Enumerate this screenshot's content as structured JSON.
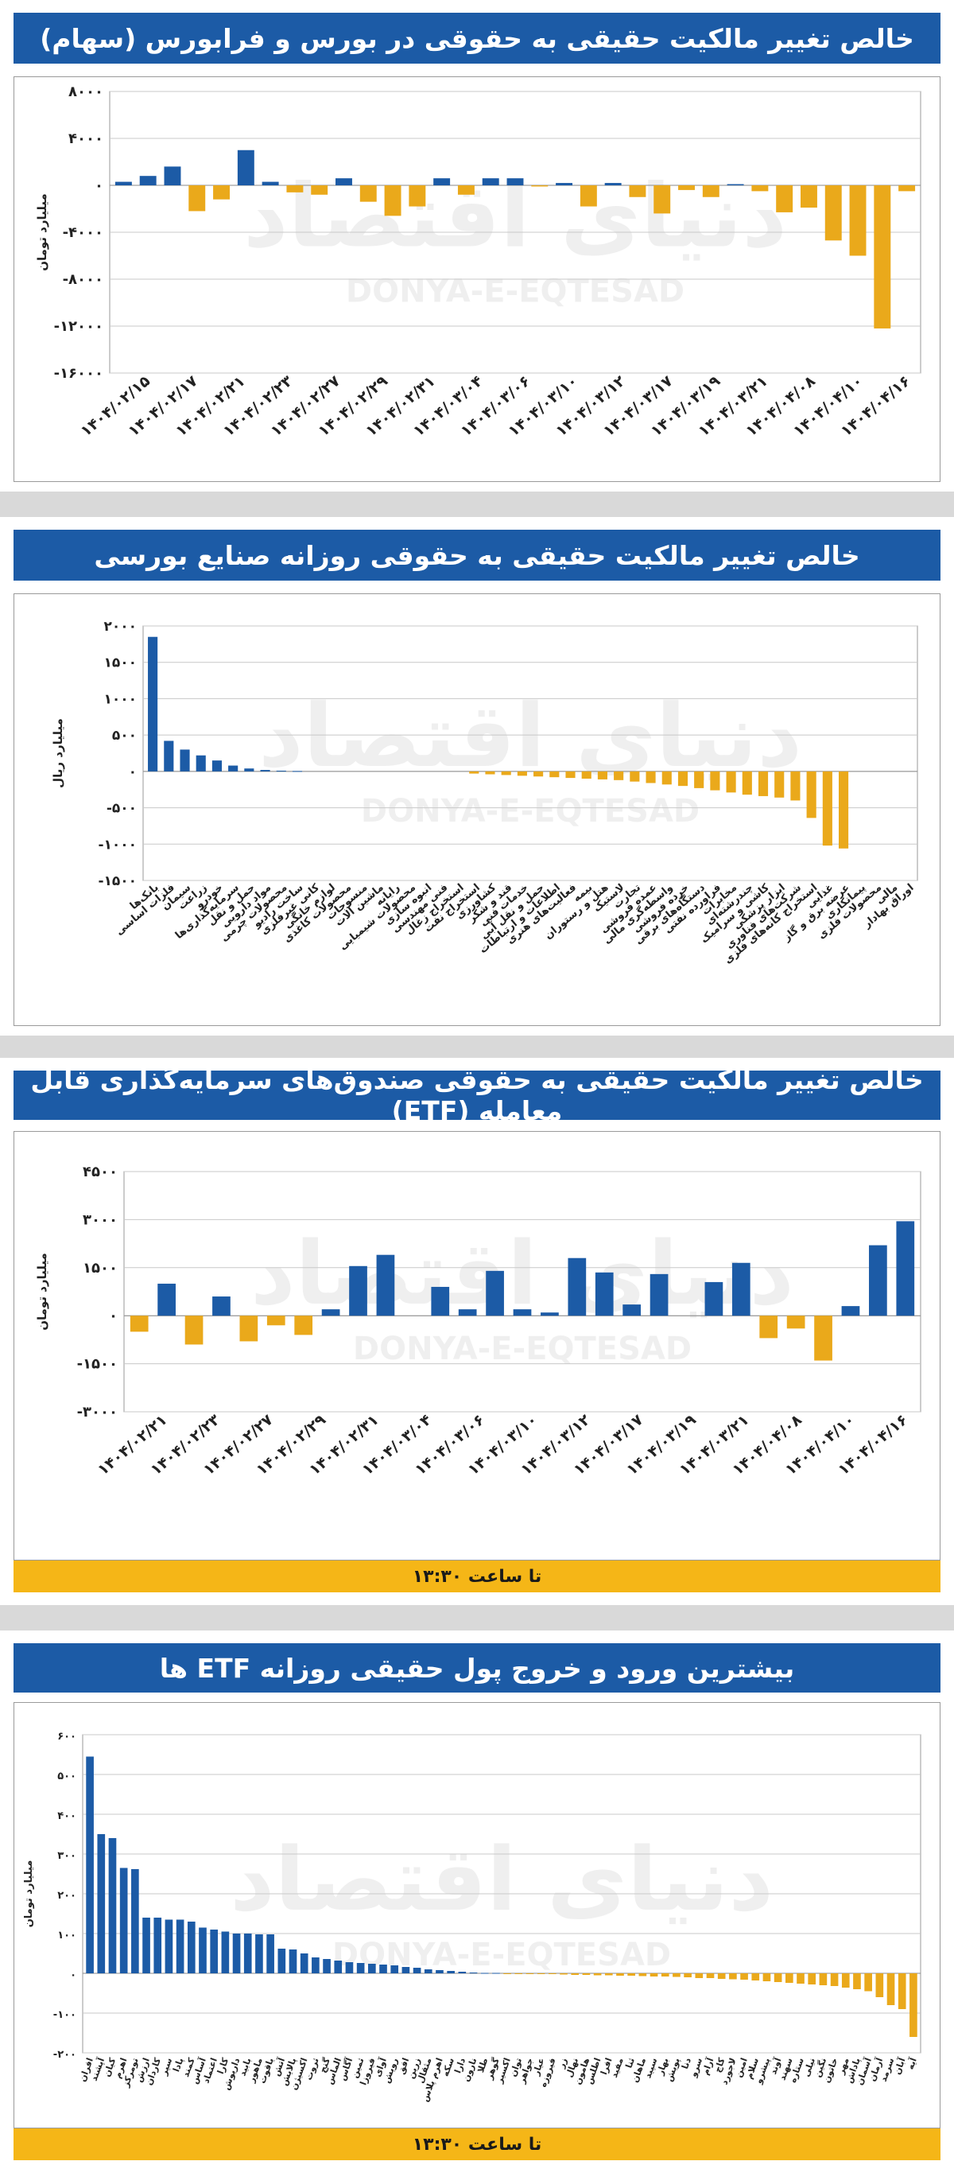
{
  "brand": {
    "watermark_fa": "دنیای اقتصاد",
    "watermark_en": "DONYA-E-EQTESAD"
  },
  "colors": {
    "title_bg": "#1c5ba6",
    "positive": "#1c5ba6",
    "negative": "#eaa91b",
    "footer_bg": "#f5b617",
    "page_bg": "#d9d9d9"
  },
  "chart_data": [
    {
      "type": "bar",
      "title": "خالص تغییر مالکیت حقیقی به حقوقی در بورس و فرابورس (سهام)",
      "ylabel": "میلیارد تومان",
      "xlabel": "",
      "ylim": [
        -16000,
        8000
      ],
      "yticks": [
        8000,
        4000,
        0,
        -4000,
        -8000,
        -12000,
        -16000
      ],
      "grid": true,
      "tick_labels": [
        "1404/02/15",
        "1404/02/17",
        "1404/02/21",
        "1404/02/23",
        "1404/02/27",
        "1404/02/29",
        "1404/02/31",
        "1404/03/04",
        "1404/03/06",
        "1404/03/10",
        "1404/03/12",
        "1404/03/17",
        "1404/03/19",
        "1404/03/21",
        "1404/04/08",
        "1404/04/10",
        "1404/04/16"
      ],
      "values": [
        300,
        800,
        1600,
        -2200,
        -1200,
        3000,
        300,
        -600,
        -800,
        600,
        -1400,
        -2600,
        -1800,
        600,
        -800,
        600,
        600,
        -100,
        200,
        -1800,
        200,
        -1000,
        -2400,
        -400,
        -1000,
        100,
        -500,
        -2300,
        -1900,
        -4700,
        -6000,
        -12200,
        -500
      ]
    },
    {
      "type": "bar",
      "title": "خالص تغییر مالکیت حقیقی به حقوقی روزانه صنایع بورسی",
      "ylabel": "میلیارد ریال",
      "xlabel": "",
      "ylim": [
        -1500,
        2000
      ],
      "yticks": [
        2000,
        1500,
        1000,
        500,
        0,
        -500,
        -1000,
        -1500
      ],
      "grid": true,
      "categories": [
        "بانک‌ها",
        "فلزات اساسی",
        "سیمان",
        "زراعت",
        "خودرو",
        "سرمایه‌گذاری‌ها",
        "حمل و نقل",
        "مواد دارویی",
        "محصولات چرمی",
        "ساخت رادیو",
        "کانی غیرفلزی",
        "لوازم خانگی",
        "محصولات کاغذی",
        "منسوجات",
        "ماشین آلات",
        "رایانه",
        "محصولات شیمیایی",
        "انبوه سازی",
        "فنی مهندسی",
        "استخراج زغال",
        "استخراج نفت",
        "کشاورزی",
        "قند و شکر",
        "خدمات فنی",
        "حمل و نقل آبی",
        "اطلاعات و ارتباطات",
        "فعالیت‌های هنری",
        "بیمه",
        "هتل و رستوران",
        "لاستیک",
        "تجارت",
        "عمده فروشی",
        "واسطه‌گری مالی",
        "خرده فروشی",
        "دستگاه‌های برقی",
        "فراورده نفتی",
        "مخابرات",
        "چندرشته‌ای",
        "کاشی و سرامیک",
        "ابزار پزشکی",
        "شرکت‌های فناوری",
        "استخراج کانه‌های فلزی",
        "غذایی",
        "عرضه برق و گاز",
        "پیمانکاری",
        "محصولات فلزی",
        "مالی",
        "اوراق بهادار"
      ],
      "values": [
        1850,
        420,
        300,
        220,
        150,
        80,
        40,
        20,
        10,
        5,
        0,
        0,
        0,
        0,
        0,
        0,
        0,
        0,
        0,
        0,
        -30,
        -40,
        -50,
        -60,
        -70,
        -80,
        -90,
        -100,
        -110,
        -120,
        -140,
        -160,
        -180,
        -200,
        -230,
        -260,
        -290,
        -320,
        -340,
        -360,
        -400,
        -640,
        -1020,
        -1060,
        0,
        0,
        0,
        0
      ]
    },
    {
      "type": "bar",
      "title": "خالص تغییر مالکیت حقیقی به حقوقی صندوق‌های سرمایه‌گذاری قابل معامله (ETF)",
      "ylabel": "میلیارد تومان",
      "xlabel": "",
      "ylim": [
        -3000,
        4500
      ],
      "yticks": [
        4500,
        3000,
        1500,
        0,
        -1500,
        -3000
      ],
      "grid": true,
      "tick_labels": [
        "1404/02/21",
        "1404/02/23",
        "1404/02/27",
        "1404/02/29",
        "1404/02/31",
        "1404/03/04",
        "1404/03/06",
        "1404/03/10",
        "1404/03/12",
        "1404/03/17",
        "1404/03/19",
        "1404/03/21",
        "1404/04/08",
        "1404/04/10",
        "1404/04/16"
      ],
      "values": [
        -500,
        1000,
        -900,
        600,
        -800,
        -300,
        -600,
        200,
        1550,
        1900,
        0,
        900,
        200,
        1400,
        200,
        100,
        1800,
        1350,
        350,
        1300,
        0,
        1050,
        1650,
        -700,
        -400,
        -1400,
        300,
        2200,
        2950
      ],
      "footer": "تا ساعت ۱۳:۳۰"
    },
    {
      "type": "bar",
      "title": "بیشترین ورود و خروج پول حقیقی روزانه ETF ها",
      "ylabel": "میلیارد تومان",
      "xlabel": "",
      "ylim": [
        -200,
        600
      ],
      "yticks": [
        600,
        500,
        400,
        300,
        200,
        100,
        0,
        -100,
        -200
      ],
      "grid": true,
      "categories": [
        "افران",
        "آپشند",
        "کیان",
        "اهرم",
        "تومرکز",
        "ارزش",
        "کاردان",
        "سپر",
        "پادا",
        "کمند",
        "آساس",
        "اعتماد",
        "کارا",
        "داریوش",
        "بابید",
        "ماهور",
        "یاقوت",
        "آتش",
        "پالایش",
        "اکسیژن",
        "ثروت",
        "گنج",
        "الماس",
        "آگاس",
        "ثمین",
        "فیروزا",
        "آوای",
        "رویش",
        "افق",
        "زرین",
        "مثقال",
        "اهرم پلاس",
        "سکه",
        "دارا",
        "نارون",
        "طلا",
        "گوهر",
        "اکسیر",
        "توان",
        "جواهر",
        "عیار",
        "فیروزه",
        "زر",
        "نهال",
        "هامون",
        "اطلس",
        "افرا",
        "مفید",
        "ثنا",
        "ماهان",
        "سپید",
        "بهار",
        "پویش",
        "دنا",
        "سرو",
        "آرام",
        "کاج",
        "لاجورد",
        "امین",
        "سلام",
        "پیشرو",
        "آوند",
        "سهند",
        "ستاره",
        "نیلی",
        "نگین",
        "خاتون",
        "مهر",
        "پاداش",
        "آسمان",
        "آرمان",
        "سرمد",
        "آبان",
        "آیه"
      ],
      "values": [
        545,
        350,
        340,
        265,
        262,
        140,
        140,
        135,
        135,
        130,
        115,
        110,
        105,
        100,
        100,
        98,
        98,
        62,
        60,
        50,
        40,
        36,
        32,
        28,
        26,
        24,
        22,
        20,
        16,
        14,
        10,
        8,
        6,
        4,
        2,
        1,
        1,
        -1,
        -1,
        -1,
        -2,
        -2,
        -3,
        -4,
        -4,
        -5,
        -5,
        -6,
        -6,
        -7,
        -8,
        -8,
        -9,
        -10,
        -12,
        -12,
        -14,
        -15,
        -16,
        -18,
        -20,
        -22,
        -24,
        -26,
        -28,
        -30,
        -32,
        -36,
        -40,
        -45,
        -60,
        -80,
        -90,
        -160
      ]
    }
  ],
  "charts_footer_2": "تا ساعت ۱۳:۳۰",
  "charts_footer_3": "تا ساعت ۱۳:۳۰"
}
